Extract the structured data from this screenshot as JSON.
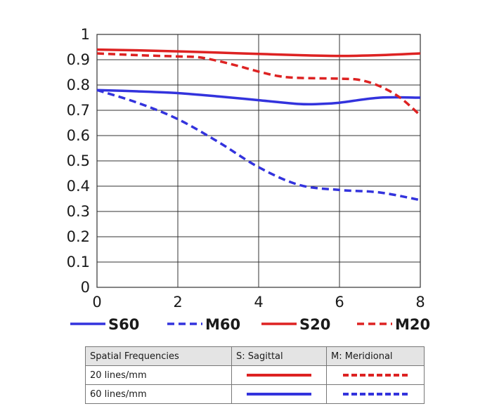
{
  "chart_data": {
    "type": "line",
    "xlim": [
      0,
      8
    ],
    "ylim": [
      0,
      1
    ],
    "x_ticks": [
      "0",
      "2",
      "4",
      "6",
      "8"
    ],
    "y_ticks": [
      "0",
      "0.1",
      "0.2",
      "0.3",
      "0.4",
      "0.5",
      "0.6",
      "0.7",
      "0.8",
      "0.9",
      "1"
    ],
    "grid": true,
    "legend_position": "bottom",
    "series": [
      {
        "name": "S60",
        "color": "#3333dd",
        "style": "solid",
        "x": [
          0,
          1,
          2,
          3,
          4,
          5,
          5.5,
          6,
          7,
          8
        ],
        "y": [
          0.78,
          0.775,
          0.768,
          0.755,
          0.74,
          0.725,
          0.725,
          0.73,
          0.75,
          0.75
        ]
      },
      {
        "name": "M60",
        "color": "#3333dd",
        "style": "dashed",
        "x": [
          0,
          1,
          2,
          3,
          4,
          5,
          6,
          7,
          8
        ],
        "y": [
          0.78,
          0.73,
          0.665,
          0.575,
          0.475,
          0.405,
          0.385,
          0.375,
          0.345
        ]
      },
      {
        "name": "S20",
        "color": "#dd2222",
        "style": "solid",
        "x": [
          0,
          1,
          2,
          3,
          4,
          5,
          6,
          7,
          8
        ],
        "y": [
          0.94,
          0.937,
          0.933,
          0.928,
          0.923,
          0.918,
          0.915,
          0.918,
          0.925
        ]
      },
      {
        "name": "M20",
        "color": "#dd2222",
        "style": "dashed",
        "x": [
          0,
          1,
          2,
          2.5,
          3,
          3.5,
          4,
          4.5,
          5,
          6,
          6.5,
          7,
          7.5,
          8
        ],
        "y": [
          0.925,
          0.918,
          0.913,
          0.91,
          0.895,
          0.875,
          0.853,
          0.835,
          0.828,
          0.825,
          0.82,
          0.795,
          0.75,
          0.68
        ]
      }
    ]
  },
  "table": {
    "headers": [
      "Spatial Frequencies",
      "S: Sagittal",
      "M: Meridional"
    ],
    "rows": [
      {
        "label": "20 lines/mm",
        "color": "#dd2222"
      },
      {
        "label": "60 lines/mm",
        "color": "#3333dd"
      }
    ]
  }
}
